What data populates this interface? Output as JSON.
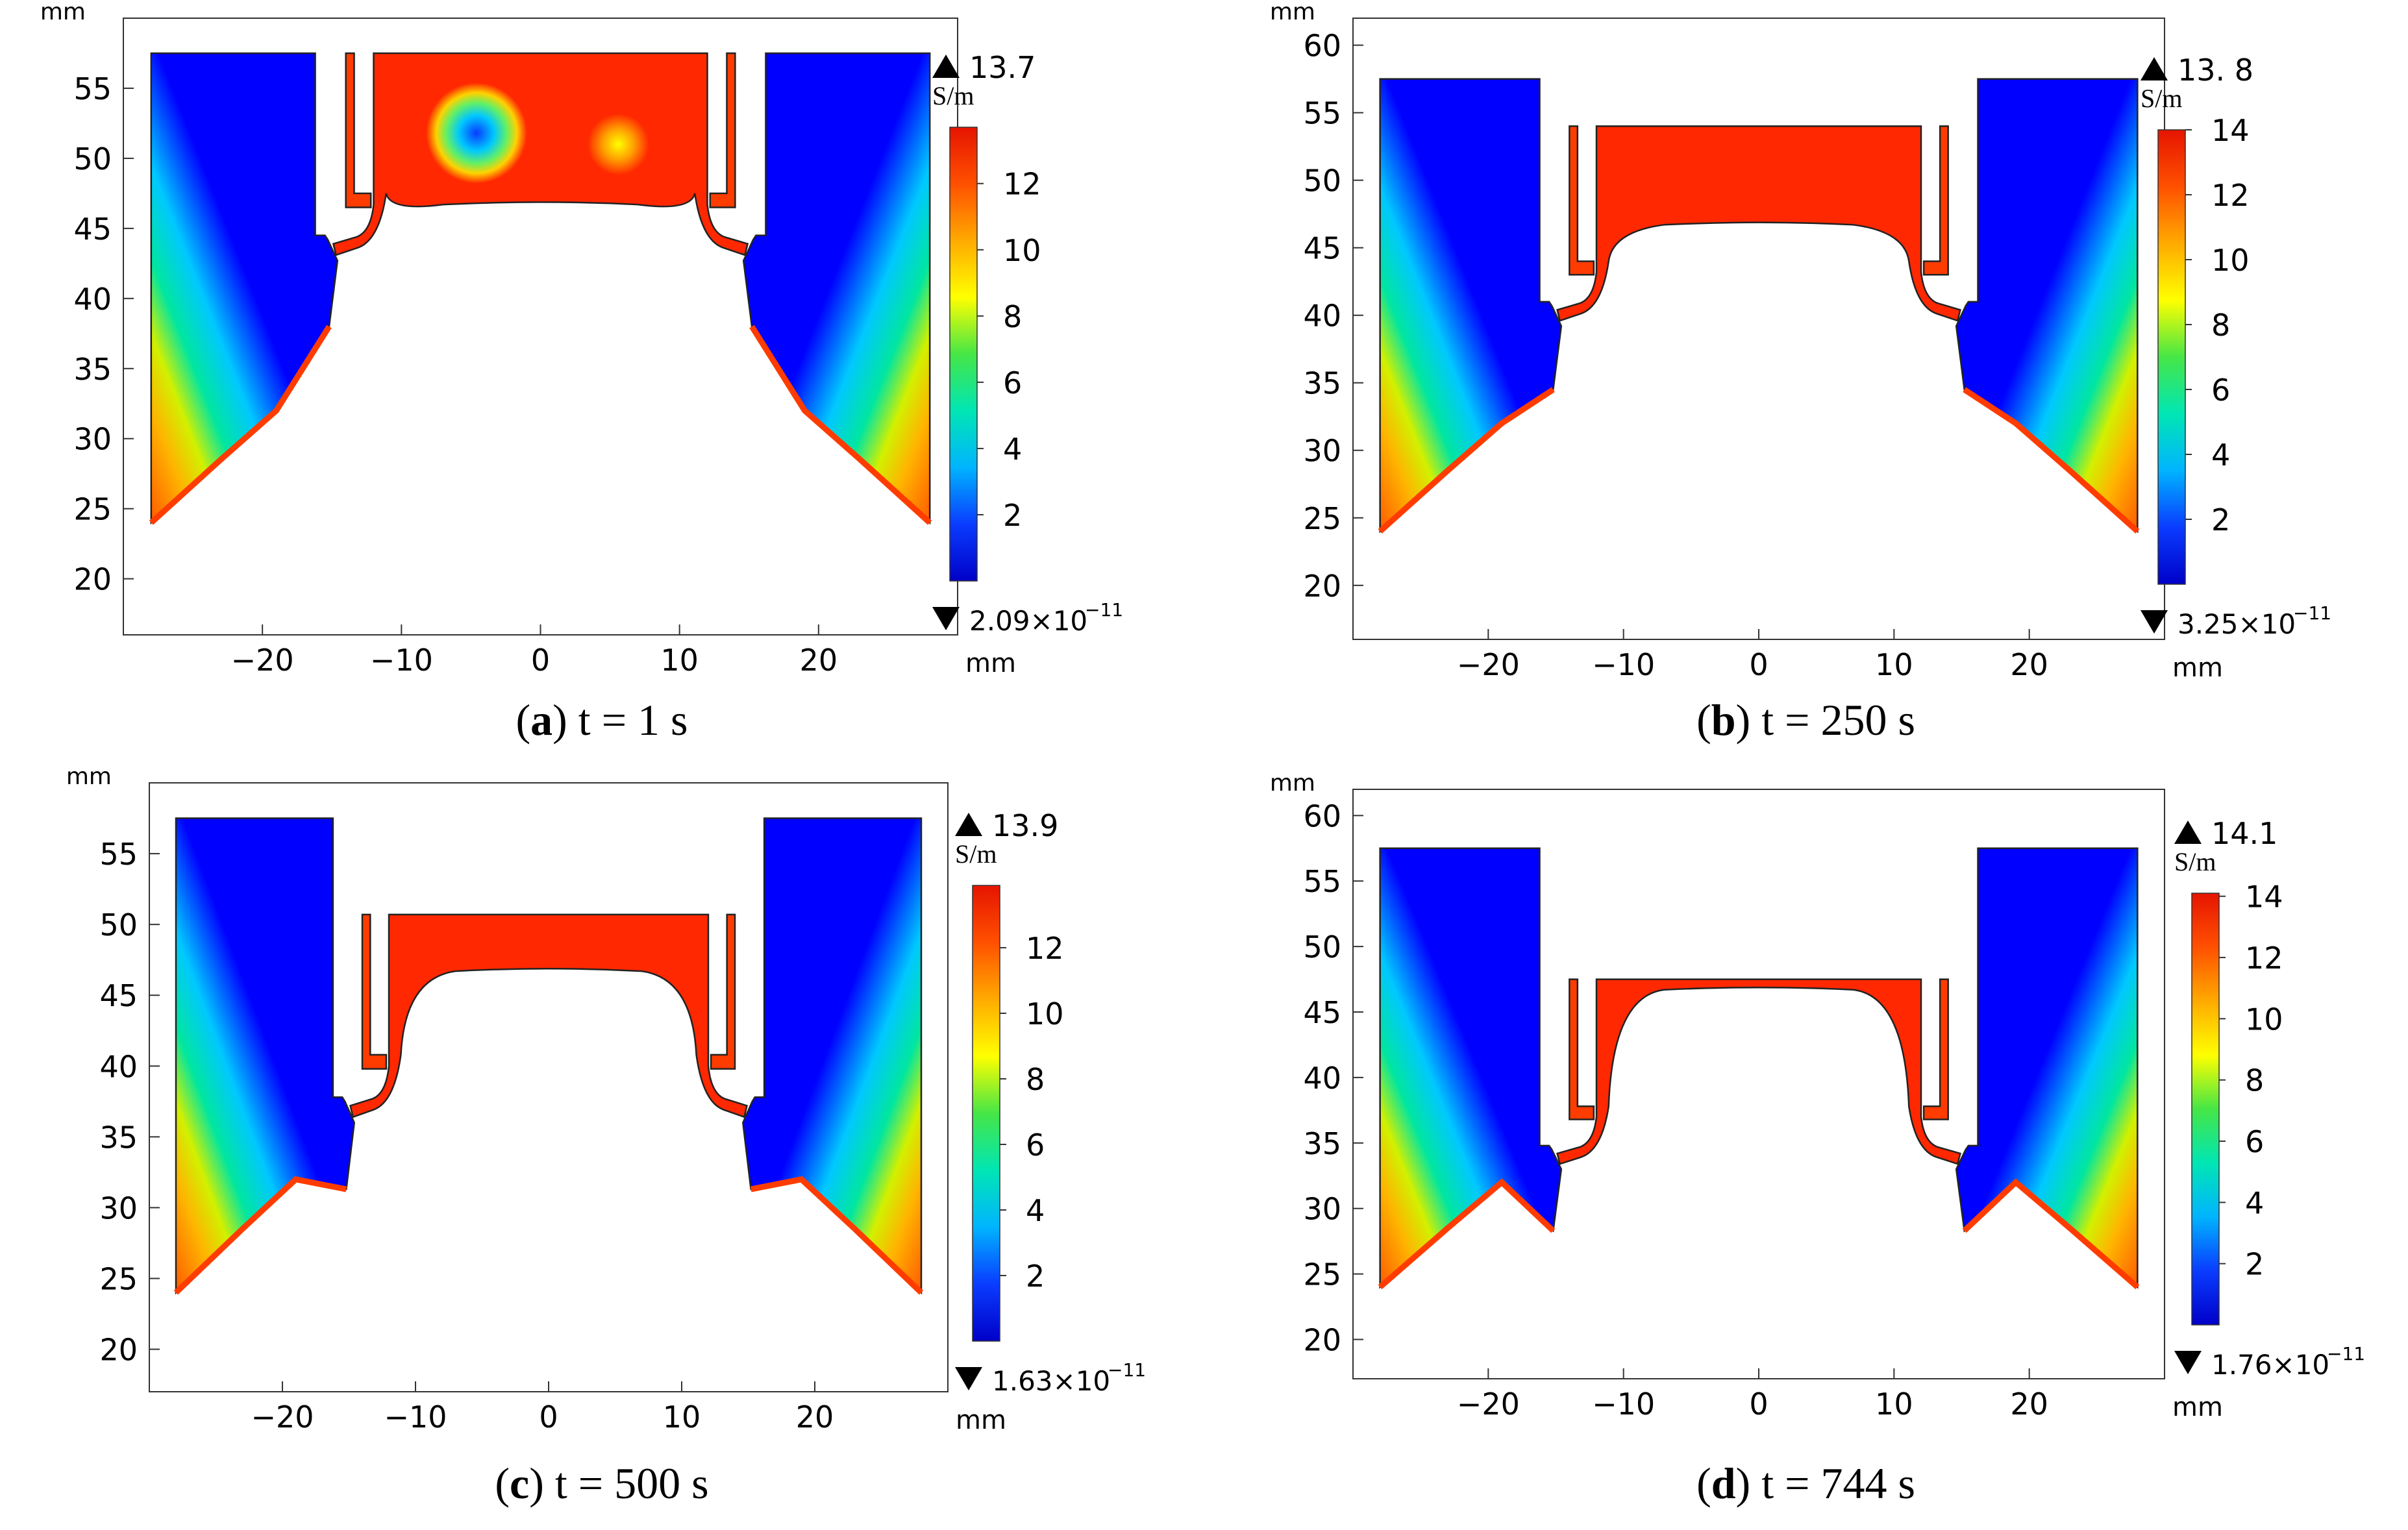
{
  "colors": {
    "blue": "#0000ff",
    "red": "#ff2200",
    "colormap": [
      "#0000c8",
      "#0a3cff",
      "#00b4ff",
      "#00e6b4",
      "#46e646",
      "#ffff00",
      "#ffaa00",
      "#ff5000",
      "#e61400"
    ]
  },
  "chart_data": [
    {
      "type": "heatmap",
      "panel_label": "(a)",
      "letter": "a",
      "caption": "t = 1 s",
      "time_s": 1,
      "quantity_unit": "S/m",
      "max_label": "13.7",
      "min_label": "2.09×10",
      "min_exp": "−11",
      "colorbar_ticks": [
        "2",
        "4",
        "6",
        "8",
        "10",
        "12"
      ],
      "colorbar_tick_values": [
        2,
        4,
        6,
        8,
        10,
        12
      ],
      "colorbar_range": [
        0,
        13.7
      ],
      "x_unit": "mm",
      "y_unit": "mm",
      "xlim": [
        -30,
        30
      ],
      "ylim": [
        16,
        60
      ],
      "x_ticks": [
        "−20",
        "−10",
        "0",
        "10",
        "20"
      ],
      "x_tick_values": [
        -20,
        -10,
        0,
        10,
        20
      ],
      "y_ticks": [
        "20",
        "25",
        "30",
        "35",
        "40",
        "45",
        "50",
        "55"
      ],
      "y_tick_values": [
        20,
        25,
        30,
        35,
        40,
        45,
        50,
        55
      ],
      "surface_top_mm": 47,
      "fluid_top_mm": 57.5,
      "gate_mm": 44.5
    },
    {
      "type": "heatmap",
      "panel_label": "(b)",
      "letter": "b",
      "caption": "t = 250 s",
      "time_s": 250,
      "quantity_unit": "S/m",
      "max_label": "13. 8",
      "min_label": "3.25×10",
      "min_exp": "−11",
      "colorbar_ticks": [
        "2",
        "4",
        "6",
        "8",
        "10",
        "12",
        "14"
      ],
      "colorbar_tick_values": [
        2,
        4,
        6,
        8,
        10,
        12,
        14
      ],
      "colorbar_range": [
        0,
        14
      ],
      "x_unit": "mm",
      "y_unit": "mm",
      "xlim": [
        -30,
        30
      ],
      "ylim": [
        16,
        62
      ],
      "x_ticks": [
        "−20",
        "−10",
        "0",
        "10",
        "20"
      ],
      "x_tick_values": [
        -20,
        -10,
        0,
        10,
        20
      ],
      "y_ticks": [
        "20",
        "25",
        "30",
        "35",
        "40",
        "45",
        "50",
        "55",
        "60"
      ],
      "y_tick_values": [
        20,
        25,
        30,
        35,
        40,
        45,
        50,
        55,
        60
      ],
      "surface_top_mm": 47,
      "fluid_top_mm": 54,
      "gate_mm": 41
    },
    {
      "type": "heatmap",
      "panel_label": "(c)",
      "letter": "c",
      "caption": "t = 500 s",
      "time_s": 500,
      "quantity_unit": "S/m",
      "max_label": "13.9",
      "min_label": "1.63×10",
      "min_exp": "−11",
      "colorbar_ticks": [
        "2",
        "4",
        "6",
        "8",
        "10",
        "12"
      ],
      "colorbar_tick_values": [
        2,
        4,
        6,
        8,
        10,
        12
      ],
      "colorbar_range": [
        0,
        13.9
      ],
      "x_unit": "mm",
      "y_unit": "mm",
      "xlim": [
        -30,
        30
      ],
      "ylim": [
        17,
        60
      ],
      "x_ticks": [
        "−20",
        "−10",
        "0",
        "10",
        "20"
      ],
      "x_tick_values": [
        -20,
        -10,
        0,
        10,
        20
      ],
      "y_ticks": [
        "20",
        "25",
        "30",
        "35",
        "40",
        "45",
        "50",
        "55"
      ],
      "y_tick_values": [
        20,
        25,
        30,
        35,
        40,
        45,
        50,
        55
      ],
      "surface_top_mm": 47,
      "fluid_top_mm": 50.7,
      "gate_mm": 37.8
    },
    {
      "type": "heatmap",
      "panel_label": "(d)",
      "letter": "d",
      "caption": "t = 744 s",
      "time_s": 744,
      "quantity_unit": "S/m",
      "max_label": "14.1",
      "min_label": "1.76×10",
      "min_exp": "−11",
      "colorbar_ticks": [
        "2",
        "4",
        "6",
        "8",
        "10",
        "12",
        "14"
      ],
      "colorbar_tick_values": [
        2,
        4,
        6,
        8,
        10,
        12,
        14
      ],
      "colorbar_range": [
        0,
        14.1
      ],
      "x_unit": "mm",
      "y_unit": "mm",
      "xlim": [
        -30,
        30
      ],
      "ylim": [
        17,
        62
      ],
      "x_ticks": [
        "−20",
        "−10",
        "0",
        "10",
        "20"
      ],
      "x_tick_values": [
        -20,
        -10,
        0,
        10,
        20
      ],
      "y_ticks": [
        "20",
        "25",
        "30",
        "35",
        "40",
        "45",
        "50",
        "55",
        "60"
      ],
      "y_tick_values": [
        20,
        25,
        30,
        35,
        40,
        45,
        50,
        55,
        60
      ],
      "surface_top_mm": 47,
      "fluid_top_mm": 47.5,
      "gate_mm": 34.8
    }
  ]
}
